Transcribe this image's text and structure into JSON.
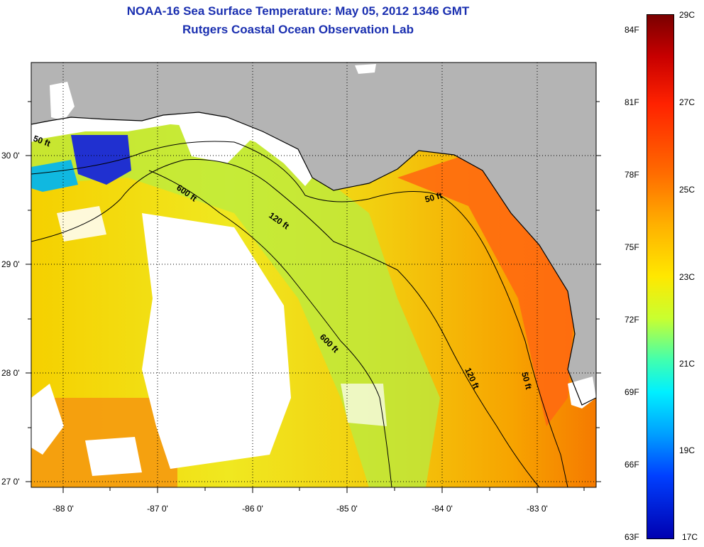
{
  "header": {
    "title": "NOAA-16 Sea Surface Temperature:  May 05, 2012 1346 GMT",
    "subtitle": "Rutgers Coastal Ocean Observation Lab"
  },
  "axes": {
    "x_labels": [
      "-88 0'",
      "-87 0'",
      "-86 0'",
      "-85 0'",
      "-84 0'",
      "-83 0'"
    ],
    "y_labels": [
      "30 0'",
      "29 0'",
      "28 0'",
      "27 0'"
    ]
  },
  "contours": {
    "c50_west": "50 ft",
    "c50_east": "50 ft",
    "c50_south": "50 ft",
    "c120_north": "120 ft",
    "c120_south": "120 ft",
    "c600_north": "600 ft",
    "c600_south": "600 ft"
  },
  "colorbar": {
    "f_labels": [
      "84F",
      "81F",
      "78F",
      "75F",
      "72F",
      "69F",
      "66F",
      "63F"
    ],
    "c_labels": [
      "29C",
      "27C",
      "25C",
      "23C",
      "21C",
      "19C",
      "17C"
    ]
  },
  "colors": {
    "land": "#b4b4b4",
    "title": "#1a2fb0",
    "cloud": "#ffffff"
  }
}
